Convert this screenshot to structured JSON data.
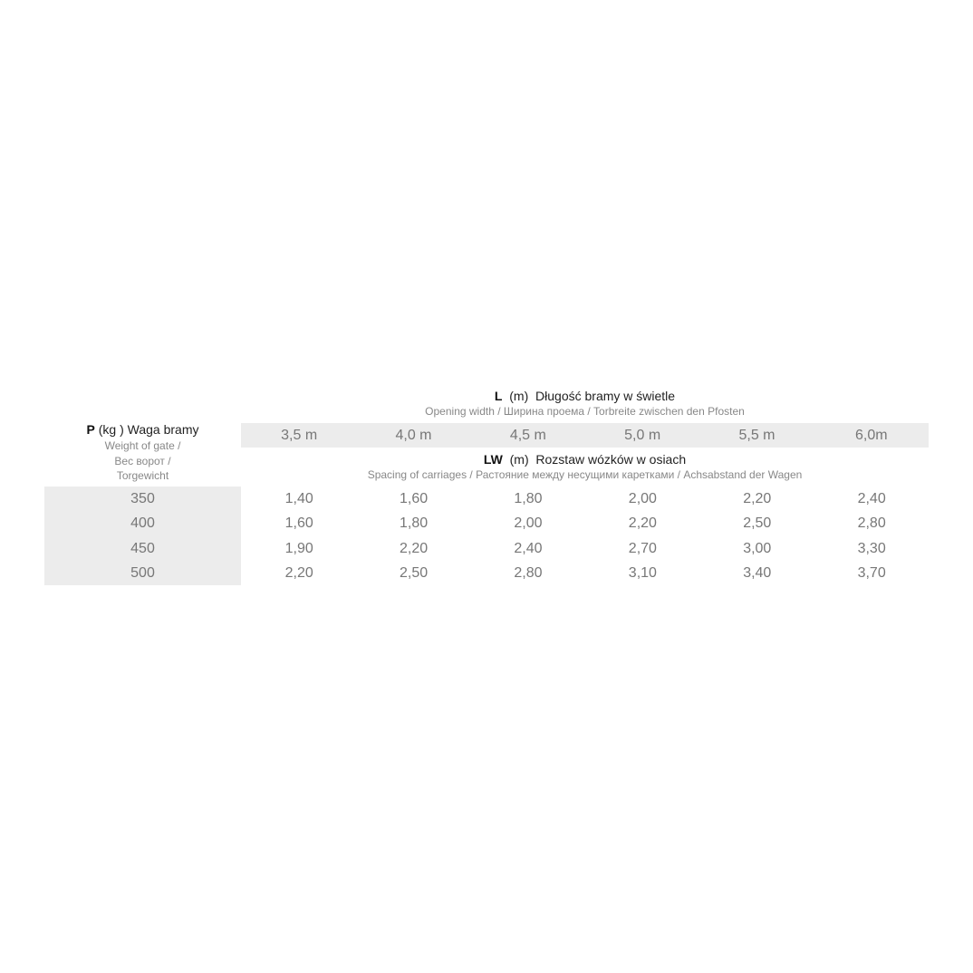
{
  "opening_header": {
    "symbol": "L",
    "unit": "(m)",
    "title": "Długość bramy w świetle",
    "subtitle": "Opening width / Ширина проема / Torbreite zwischen den Pfosten"
  },
  "spacing_header": {
    "symbol": "LW",
    "unit": "(m)",
    "title": "Rozstaw wózków w osiach",
    "subtitle": "Spacing of carriages / Растояние между несущими каретками  / Achsabstand der Wagen"
  },
  "weight_header": {
    "symbol": "P",
    "unit": "(kg )",
    "title": "Waga bramy",
    "sub1": "Weight of gate /",
    "sub2": "Вес ворот /",
    "sub3": "Torgewicht"
  },
  "columns": [
    "3,5 m",
    "4,0 m",
    "4,5 m",
    "5,0 m",
    "5,5 m",
    "6,0m"
  ],
  "rows": [
    {
      "weight": "350",
      "values": [
        "1,40",
        "1,60",
        "1,80",
        "2,00",
        "2,20",
        "2,40"
      ]
    },
    {
      "weight": "400",
      "values": [
        "1,60",
        "1,80",
        "2,00",
        "2,20",
        "2,50",
        "2,80"
      ]
    },
    {
      "weight": "450",
      "values": [
        "1,90",
        "2,20",
        "2,40",
        "2,70",
        "3,00",
        "3,30"
      ]
    },
    {
      "weight": "500",
      "values": [
        "2,20",
        "2,50",
        "2,80",
        "3,10",
        "3,40",
        "3,70"
      ]
    }
  ],
  "colors": {
    "band": "#ececec",
    "value_text": "#777777"
  }
}
